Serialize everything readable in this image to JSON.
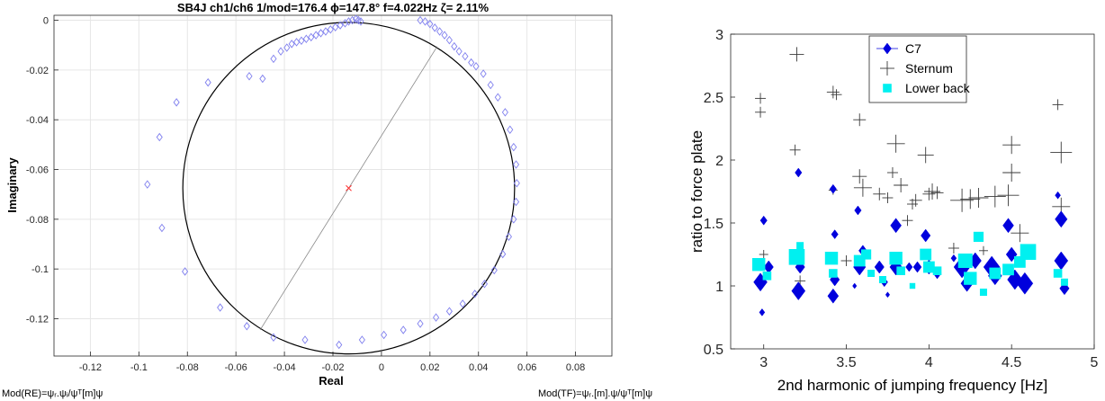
{
  "chart_data": [
    {
      "type": "scatter",
      "title": "SB4J ch1/ch6 1/mod=176.4 ϕ=147.8° f=4.022Hz ζ= 2.11%",
      "xlabel": "Real",
      "ylabel": "Imaginary",
      "xlim": [
        -0.135,
        0.095
      ],
      "ylim": [
        -0.135,
        0.002
      ],
      "xticks": [
        -0.12,
        -0.1,
        -0.08,
        -0.06,
        -0.04,
        -0.02,
        0,
        0.02,
        0.04,
        0.06,
        0.08
      ],
      "yticks": [
        0,
        -0.02,
        -0.04,
        -0.06,
        -0.08,
        -0.1,
        -0.12
      ],
      "xtick_labels": [
        "-0.12",
        "-0.1",
        "-0.08",
        "-0.06",
        "-0.04",
        "-0.02",
        "0",
        "0.02",
        "0.04",
        "0.06",
        "0.08"
      ],
      "ytick_labels": [
        "0",
        "-0.02",
        "-0.04",
        "-0.06",
        "-0.08",
        "-0.1",
        "-0.12"
      ],
      "grid": true,
      "circle": {
        "center": [
          -0.0135,
          -0.0675
        ],
        "radius": 0.0675,
        "color": "#000000"
      },
      "center_marker": [
        -0.0135,
        -0.0675
      ],
      "diameter_line": [
        [
          0.023,
          -0.0105
        ],
        [
          -0.05,
          -0.1245
        ]
      ],
      "marker_color": "#8080ee",
      "points": [
        [
          -0.0965,
          -0.066
        ],
        [
          -0.0915,
          -0.047
        ],
        [
          -0.0905,
          -0.0835
        ],
        [
          -0.0845,
          -0.033
        ],
        [
          -0.081,
          -0.101
        ],
        [
          -0.0715,
          -0.025
        ],
        [
          -0.0665,
          -0.1155
        ],
        [
          -0.0555,
          -0.123
        ],
        [
          -0.0545,
          -0.0225
        ],
        [
          -0.049,
          -0.0235
        ],
        [
          -0.0445,
          -0.0155
        ],
        [
          -0.0415,
          -0.0125
        ],
        [
          -0.039,
          -0.011
        ],
        [
          -0.037,
          -0.0095
        ],
        [
          -0.035,
          -0.0088
        ],
        [
          -0.033,
          -0.0082
        ],
        [
          -0.031,
          -0.0075
        ],
        [
          -0.029,
          -0.0068
        ],
        [
          -0.027,
          -0.006
        ],
        [
          -0.025,
          -0.0052
        ],
        [
          -0.023,
          -0.0045
        ],
        [
          -0.021,
          -0.0037
        ],
        [
          -0.019,
          -0.0028
        ],
        [
          -0.017,
          -0.002
        ],
        [
          -0.015,
          -0.0012
        ],
        [
          -0.0135,
          -0.0005
        ],
        [
          -0.012,
          0.0
        ],
        [
          -0.0105,
          0.0005
        ],
        [
          -0.0095,
          0.0
        ],
        [
          -0.0085,
          -0.0005
        ],
        [
          0.016,
          0.0
        ],
        [
          0.018,
          -0.0005
        ],
        [
          0.02,
          -0.0015
        ],
        [
          0.022,
          -0.003
        ],
        [
          0.024,
          -0.0045
        ],
        [
          0.026,
          -0.006
        ],
        [
          0.028,
          -0.008
        ],
        [
          0.03,
          -0.0105
        ],
        [
          0.032,
          -0.0125
        ],
        [
          0.0345,
          -0.0145
        ],
        [
          0.037,
          -0.017
        ],
        [
          0.039,
          -0.0185
        ],
        [
          0.042,
          -0.0215
        ],
        [
          0.045,
          -0.026
        ],
        [
          0.048,
          -0.031
        ],
        [
          0.051,
          -0.037
        ],
        [
          0.053,
          -0.044
        ],
        [
          0.0545,
          -0.051
        ],
        [
          0.0555,
          -0.058
        ],
        [
          0.0558,
          -0.0655
        ],
        [
          0.0555,
          -0.073
        ],
        [
          0.0545,
          -0.08
        ],
        [
          0.0525,
          -0.087
        ],
        [
          0.05,
          -0.094
        ],
        [
          0.0465,
          -0.1005
        ],
        [
          0.0425,
          -0.106
        ],
        [
          0.0385,
          -0.11
        ],
        [
          0.0335,
          -0.114
        ],
        [
          0.028,
          -0.117
        ],
        [
          0.0225,
          -0.1195
        ],
        [
          0.016,
          -0.122
        ],
        [
          0.009,
          -0.1245
        ],
        [
          0.001,
          -0.1265
        ],
        [
          -0.008,
          -0.1285
        ],
        [
          -0.0175,
          -0.1305
        ],
        [
          -0.0315,
          -0.1285
        ],
        [
          -0.0445,
          -0.1275
        ]
      ],
      "bottom_left_note": "Mod(RE)=ψᵣ.ψᵢ/ψᵀ[m]ψ",
      "bottom_right_note": "Mod(TF)=ψᵣ.[m].ψ/ψᵀ[m]ψ"
    },
    {
      "type": "scatter",
      "xlabel": "2nd harmonic of jumping frequency [Hz]",
      "ylabel": "ratio to force plate",
      "xlim": [
        2.8,
        5.0
      ],
      "ylim": [
        0.5,
        3.0
      ],
      "xticks": [
        3,
        3.5,
        4,
        4.5,
        5
      ],
      "yticks": [
        0.5,
        1,
        1.5,
        2,
        2.5,
        3
      ],
      "xtick_labels": [
        "3",
        "3.5",
        "4",
        "4.5",
        "5"
      ],
      "ytick_labels": [
        "0.5",
        "1",
        "1.5",
        "2",
        "2.5",
        "3"
      ],
      "grid": false,
      "legend": "top-center",
      "series": [
        {
          "name": "Sternum",
          "color": "#3a3a3a",
          "marker": "plus",
          "points": [
            [
              2.98,
              2.49,
              6
            ],
            [
              2.98,
              2.38,
              6
            ],
            [
              3.2,
              2.84,
              8
            ],
            [
              3.19,
              2.08,
              6
            ],
            [
              3.42,
              2.54,
              7
            ],
            [
              3.44,
              2.52,
              6
            ],
            [
              3.42,
              1.76,
              5
            ],
            [
              3.58,
              2.32,
              7
            ],
            [
              3.58,
              1.87,
              8
            ],
            [
              3.6,
              1.78,
              10
            ],
            [
              3.7,
              1.73,
              7
            ],
            [
              3.75,
              1.7,
              6
            ],
            [
              3.78,
              1.9,
              6
            ],
            [
              3.8,
              2.13,
              10
            ],
            [
              3.83,
              1.8,
              8
            ],
            [
              3.87,
              1.52,
              6
            ],
            [
              3.92,
              1.68,
              7
            ],
            [
              3.98,
              2.04,
              9
            ],
            [
              4.0,
              1.73,
              7
            ],
            [
              4.02,
              1.75,
              9
            ],
            [
              4.05,
              1.74,
              7
            ],
            [
              4.2,
              1.68,
              13
            ],
            [
              4.25,
              1.69,
              11
            ],
            [
              4.3,
              1.7,
              11
            ],
            [
              4.33,
              1.28,
              5
            ],
            [
              4.4,
              1.71,
              12
            ],
            [
              4.48,
              1.72,
              12
            ],
            [
              4.5,
              2.12,
              10
            ],
            [
              4.5,
              1.9,
              10
            ],
            [
              4.55,
              1.42,
              10
            ],
            [
              4.78,
              2.44,
              6
            ],
            [
              4.8,
              2.06,
              12
            ],
            [
              4.8,
              1.63,
              10
            ],
            [
              3.9,
              1.65,
              6
            ],
            [
              3.5,
              1.2,
              6
            ],
            [
              4.15,
              1.3,
              6
            ],
            [
              3.0,
              1.25,
              5
            ],
            [
              3.22,
              1.04,
              6
            ]
          ]
        },
        {
          "name": "C7",
          "color": "#0000dd",
          "marker": "diamond",
          "points": [
            [
              2.98,
              1.03,
              10
            ],
            [
              3.0,
              1.52,
              5
            ],
            [
              2.99,
              0.79,
              4
            ],
            [
              3.03,
              1.15,
              7
            ],
            [
              3.21,
              1.9,
              5
            ],
            [
              3.21,
              0.96,
              10
            ],
            [
              3.22,
              1.15,
              7
            ],
            [
              3.42,
              1.77,
              5
            ],
            [
              3.42,
              0.92,
              8
            ],
            [
              3.43,
              1.05,
              7
            ],
            [
              3.43,
              1.41,
              5
            ],
            [
              3.57,
              1.6,
              5
            ],
            [
              3.58,
              1.15,
              9
            ],
            [
              3.6,
              1.28,
              6
            ],
            [
              3.7,
              1.15,
              7
            ],
            [
              3.73,
              1.03,
              5
            ],
            [
              3.8,
              1.48,
              8
            ],
            [
              3.8,
              1.15,
              9
            ],
            [
              3.88,
              1.15,
              5
            ],
            [
              3.93,
              1.15,
              6
            ],
            [
              3.98,
              1.4,
              7
            ],
            [
              4.0,
              1.15,
              8
            ],
            [
              4.05,
              1.1,
              6
            ],
            [
              4.2,
              1.15,
              12
            ],
            [
              4.23,
              1.02,
              9
            ],
            [
              4.28,
              1.2,
              9
            ],
            [
              4.38,
              1.15,
              12
            ],
            [
              4.4,
              1.08,
              10
            ],
            [
              4.48,
              1.48,
              8
            ],
            [
              4.5,
              1.25,
              8
            ],
            [
              4.52,
              1.05,
              11
            ],
            [
              4.58,
              1.02,
              12
            ],
            [
              4.78,
              1.72,
              4
            ],
            [
              4.8,
              1.53,
              9
            ],
            [
              4.8,
              1.2,
              10
            ],
            [
              4.82,
              0.98,
              7
            ],
            [
              3.55,
              1.0,
              3
            ],
            [
              3.75,
              0.93,
              3
            ],
            [
              4.15,
              1.22,
              4
            ]
          ]
        },
        {
          "name": "Lower back",
          "color": "#00f0f0",
          "marker": "square",
          "points": [
            [
              2.97,
              1.17,
              9
            ],
            [
              3.02,
              1.08,
              6
            ],
            [
              3.2,
              1.23,
              11
            ],
            [
              3.22,
              1.32,
              5
            ],
            [
              3.41,
              1.22,
              9
            ],
            [
              3.42,
              1.1,
              6
            ],
            [
              3.58,
              1.2,
              8
            ],
            [
              3.62,
              1.25,
              7
            ],
            [
              3.65,
              1.1,
              5
            ],
            [
              3.72,
              1.05,
              5
            ],
            [
              3.8,
              1.22,
              9
            ],
            [
              3.83,
              1.12,
              6
            ],
            [
              3.9,
              1.0,
              4
            ],
            [
              3.98,
              1.25,
              8
            ],
            [
              4.0,
              1.15,
              8
            ],
            [
              4.05,
              1.12,
              6
            ],
            [
              4.22,
              1.2,
              10
            ],
            [
              4.25,
              1.06,
              9
            ],
            [
              4.3,
              1.39,
              7
            ],
            [
              4.33,
              0.95,
              5
            ],
            [
              4.4,
              1.1,
              8
            ],
            [
              4.48,
              1.13,
              8
            ],
            [
              4.55,
              1.19,
              8
            ],
            [
              4.6,
              1.27,
              11
            ],
            [
              4.78,
              1.1,
              6
            ],
            [
              4.82,
              1.03,
              5
            ]
          ]
        }
      ]
    }
  ]
}
